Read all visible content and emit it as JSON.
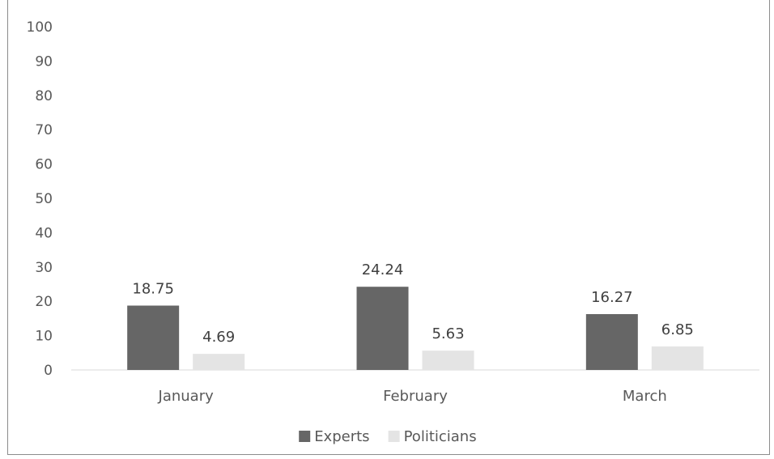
{
  "chart_data": {
    "type": "bar",
    "title": "",
    "xlabel": "",
    "ylabel": "",
    "categories": [
      "January",
      "February",
      "March"
    ],
    "series": [
      {
        "name": "Experts",
        "values": [
          18.75,
          24.24,
          16.27
        ],
        "color": "#666666"
      },
      {
        "name": "Politicians",
        "values": [
          4.69,
          5.63,
          6.85
        ],
        "color": "#e4e4e4"
      }
    ],
    "ylim": [
      0,
      100
    ],
    "yticks": [
      0,
      10,
      20,
      30,
      40,
      50,
      60,
      70,
      80,
      90,
      100
    ],
    "data_labels": true,
    "grid": false,
    "legend_position": "bottom"
  }
}
